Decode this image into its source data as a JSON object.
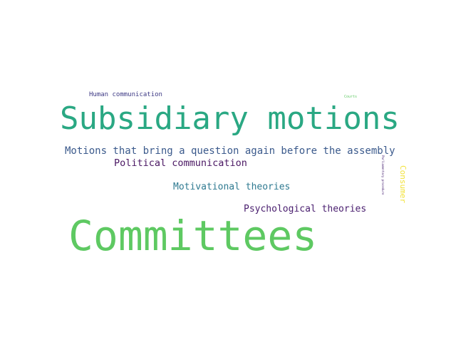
{
  "word_cloud": {
    "words": [
      {
        "text": "Subsidiary motions",
        "color": "#2aa883"
      },
      {
        "text": "Committees",
        "color": "#5ec962"
      },
      {
        "text": "Motions that bring a question again before the assembly",
        "color": "#3b5a8c"
      },
      {
        "text": "Political communication",
        "color": "#4a1763"
      },
      {
        "text": "Motivational theories",
        "color": "#2f7a91"
      },
      {
        "text": "Psychological theories",
        "color": "#4b2070"
      },
      {
        "text": "Human communication",
        "color": "#3e3a85"
      },
      {
        "text": "Consumer",
        "color": "#f2e23a"
      },
      {
        "text": "Courts",
        "color": "#5ec962"
      },
      {
        "text": "Parliamentary procedure",
        "color": "#462072"
      }
    ]
  }
}
